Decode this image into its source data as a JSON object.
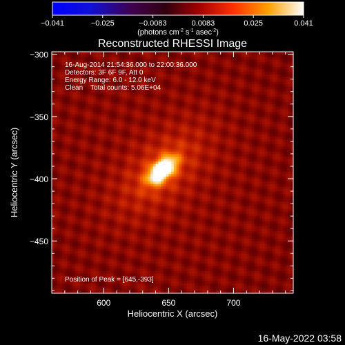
{
  "chart_data": {
    "type": "heatmap",
    "title": "Reconstructed RHESSI Image",
    "xlabel": "Heliocentric X (arcsec)",
    "ylabel": "Heliocentric Y (arcsec)",
    "xlim": [
      560,
      746
    ],
    "ylim": [
      -492,
      -298
    ],
    "x_ticks": [
      600,
      650,
      700
    ],
    "y_ticks": [
      -300,
      -350,
      -400,
      -450
    ],
    "colorbar": {
      "ticks": [
        "-0.041",
        "-0.025",
        "-0.0083",
        "0.0083",
        "0.025",
        "0.041"
      ],
      "unit_prefix": "(photons cm",
      "unit_sup1": "-2",
      "unit_mid": " s",
      "unit_sup2": "-1",
      "unit_mid2": " asec",
      "unit_sup3": "-2",
      "unit_suffix": ")",
      "range": [
        -0.041,
        0.041
      ]
    },
    "annotations": [
      "16-Aug-2014 21:54:36.000 to 22:00:36.000",
      "Detectors: 3F 6F 9F, Att 0",
      "Energy Range: 6.0 - 12.0 keV",
      "Clean    Total counts: 5.06E+04"
    ],
    "peak_label": "Position of Peak = [645,-393]",
    "peak": {
      "x": 645,
      "y": -393,
      "value": 0.041
    },
    "source": {
      "x": 645,
      "y": -393,
      "sigma_major": 9,
      "sigma_minor": 5,
      "angle_deg": 45
    },
    "grid": false,
    "legend": "none"
  },
  "footer": {
    "timestamp": "16-May-2022 03:58"
  },
  "colors": {
    "background": "#000000",
    "axis": "#ffffff",
    "colormap": "IDL red-temperature (blue negative)"
  }
}
